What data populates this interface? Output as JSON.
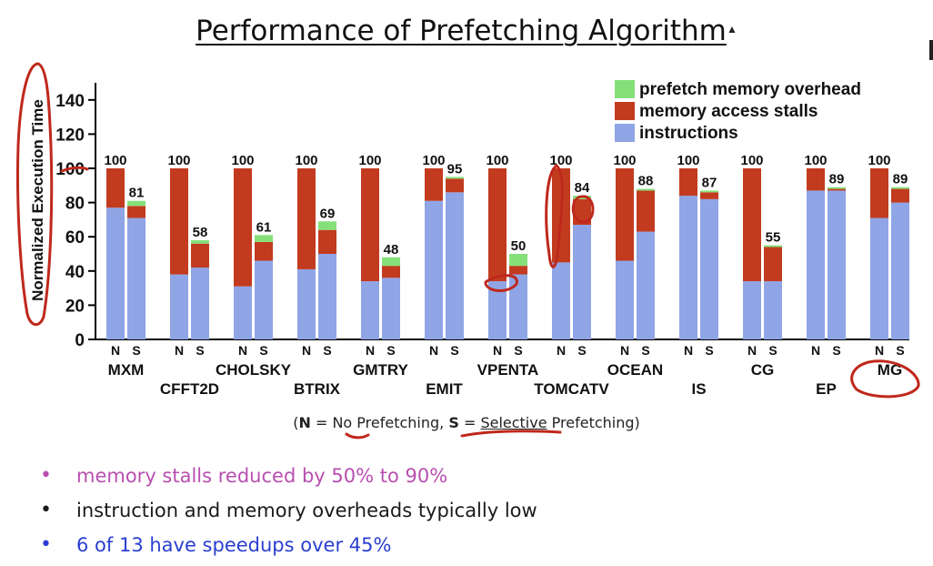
{
  "slide": {
    "title": "Performance of Prefetching Algorithm",
    "note": {
      "open": "(",
      "n_key": "N",
      "n_eq": " = ",
      "n_text": "No Prefetching",
      "sep": ", ",
      "s_key": "S",
      "s_eq": " = ",
      "s_text": "Selective",
      "s_rest": " Prefetching)"
    },
    "bullets": [
      {
        "text": "memory stalls reduced by 50% to 90%",
        "color": "#b84fb0"
      },
      {
        "text": "instruction and memory overheads typically low",
        "color": "#1a1a1a"
      },
      {
        "text": "6 of 13 have speedups over 45%",
        "color": "#2a3fd0"
      }
    ]
  },
  "chart_data": {
    "type": "bar",
    "stacked": true,
    "ylabel": "Normalized Execution Time",
    "ylim": [
      0,
      150
    ],
    "yticks": [
      0,
      20,
      40,
      60,
      80,
      100,
      120,
      140
    ],
    "grid": false,
    "legend_position": "top-right",
    "series": [
      {
        "name": "instructions",
        "color": "#8fa5e6"
      },
      {
        "name": "memory access stalls",
        "color": "#c23b1f"
      },
      {
        "name": "prefetch memory overhead",
        "color": "#86e07a"
      }
    ],
    "categories": [
      {
        "name": "MXM",
        "row": 0,
        "bars": [
          {
            "label": "N",
            "instructions": 77,
            "stalls": 23,
            "overhead": 0,
            "total": "100"
          },
          {
            "label": "S",
            "instructions": 71,
            "stalls": 7,
            "overhead": 3,
            "total": "81"
          }
        ]
      },
      {
        "name": "CFFT2D",
        "row": 1,
        "bars": [
          {
            "label": "N",
            "instructions": 38,
            "stalls": 62,
            "overhead": 0,
            "total": "100"
          },
          {
            "label": "S",
            "instructions": 42,
            "stalls": 14,
            "overhead": 2,
            "total": "58"
          }
        ]
      },
      {
        "name": "CHOLSKY",
        "row": 0,
        "bars": [
          {
            "label": "N",
            "instructions": 31,
            "stalls": 69,
            "overhead": 0,
            "total": "100"
          },
          {
            "label": "S",
            "instructions": 46,
            "stalls": 11,
            "overhead": 4,
            "total": "61"
          }
        ]
      },
      {
        "name": "BTRIX",
        "row": 1,
        "bars": [
          {
            "label": "N",
            "instructions": 41,
            "stalls": 59,
            "overhead": 0,
            "total": "100"
          },
          {
            "label": "S",
            "instructions": 50,
            "stalls": 14,
            "overhead": 5,
            "total": "69"
          }
        ]
      },
      {
        "name": "GMTRY",
        "row": 0,
        "bars": [
          {
            "label": "N",
            "instructions": 34,
            "stalls": 66,
            "overhead": 0,
            "total": "100"
          },
          {
            "label": "S",
            "instructions": 36,
            "stalls": 7,
            "overhead": 5,
            "total": "48"
          }
        ]
      },
      {
        "name": "EMIT",
        "row": 1,
        "bars": [
          {
            "label": "N",
            "instructions": 81,
            "stalls": 19,
            "overhead": 0,
            "total": "100"
          },
          {
            "label": "S",
            "instructions": 86,
            "stalls": 8,
            "overhead": 1,
            "total": "95"
          }
        ]
      },
      {
        "name": "VPENTA",
        "row": 0,
        "bars": [
          {
            "label": "N",
            "instructions": 34,
            "stalls": 66,
            "overhead": 0,
            "total": "100"
          },
          {
            "label": "S",
            "instructions": 38,
            "stalls": 5,
            "overhead": 7,
            "total": "50"
          }
        ]
      },
      {
        "name": "TOMCATV",
        "row": 1,
        "bars": [
          {
            "label": "N",
            "instructions": 45,
            "stalls": 55,
            "overhead": 0,
            "total": "100"
          },
          {
            "label": "S",
            "instructions": 67,
            "stalls": 15,
            "overhead": 2,
            "total": "84"
          }
        ]
      },
      {
        "name": "OCEAN",
        "row": 0,
        "bars": [
          {
            "label": "N",
            "instructions": 46,
            "stalls": 54,
            "overhead": 0,
            "total": "100"
          },
          {
            "label": "S",
            "instructions": 63,
            "stalls": 24,
            "overhead": 1,
            "total": "88"
          }
        ]
      },
      {
        "name": "IS",
        "row": 1,
        "bars": [
          {
            "label": "N",
            "instructions": 84,
            "stalls": 16,
            "overhead": 0,
            "total": "100"
          },
          {
            "label": "S",
            "instructions": 82,
            "stalls": 4,
            "overhead": 1,
            "total": "87"
          }
        ]
      },
      {
        "name": "CG",
        "row": 0,
        "bars": [
          {
            "label": "N",
            "instructions": 34,
            "stalls": 66,
            "overhead": 0,
            "total": "100"
          },
          {
            "label": "S",
            "instructions": 34,
            "stalls": 20,
            "overhead": 1,
            "total": "55"
          }
        ]
      },
      {
        "name": "EP",
        "row": 1,
        "bars": [
          {
            "label": "N",
            "instructions": 87,
            "stalls": 13,
            "overhead": 0,
            "total": "100"
          },
          {
            "label": "S",
            "instructions": 87,
            "stalls": 1,
            "overhead": 1,
            "total": "89"
          }
        ]
      },
      {
        "name": "MG",
        "row": 0,
        "bars": [
          {
            "label": "N",
            "instructions": 71,
            "stalls": 29,
            "overhead": 0,
            "total": "100"
          },
          {
            "label": "S",
            "instructions": 80,
            "stalls": 8,
            "overhead": 1,
            "total": "89"
          }
        ]
      }
    ]
  },
  "annotation_color": "#c0281c"
}
